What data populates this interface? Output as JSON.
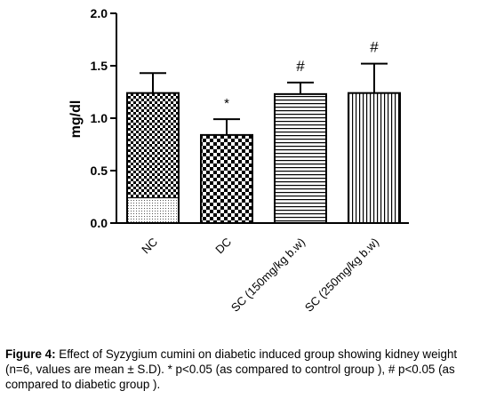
{
  "chart_data": {
    "type": "bar",
    "ylabel": "mg/dl",
    "ylim": [
      0,
      2.0
    ],
    "yticks": [
      "0.0",
      "0.5",
      "1.0",
      "1.5",
      "2.0"
    ],
    "grid": false,
    "categories": [
      "NC",
      "DC",
      "SC (150mg/kg b.w)",
      "SC (250mg/kg b.w)"
    ],
    "values": [
      1.24,
      0.84,
      1.23,
      1.24
    ],
    "errors": [
      0.19,
      0.15,
      0.11,
      0.28
    ],
    "annotations": [
      "",
      "*",
      "#",
      "#"
    ],
    "patterns": [
      "checker-with-dotted-base",
      "checker",
      "horizontal-lines",
      "vertical-lines"
    ]
  },
  "caption": {
    "label": "Figure 4:",
    "text": " Effect of Syzygium cumini on diabetic induced group showing kidney weight (n=6, values are mean ± S.D). * p<0.05 (as compared to control group ), # p<0.05 (as compared to diabetic group )."
  }
}
